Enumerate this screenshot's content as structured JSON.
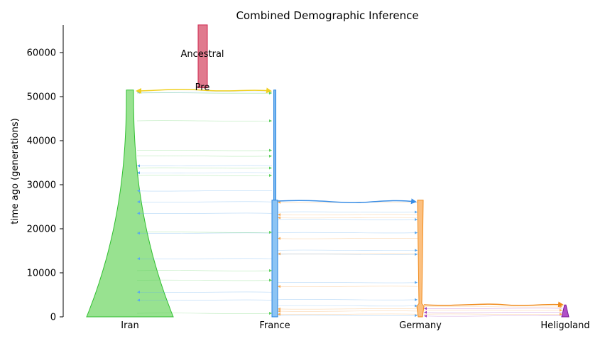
{
  "chart_data": {
    "type": "demography",
    "title": "Combined Demographic Inference",
    "ylabel": "time ago (generations)",
    "ylim": [
      0,
      66000
    ],
    "yticks": [
      0,
      10000,
      20000,
      30000,
      40000,
      50000,
      60000
    ],
    "x_categories": [
      "Iran",
      "France",
      "Germany",
      "Heligoland"
    ],
    "colors": {
      "Ancestral": "#e07a8e",
      "Pre": "#f0d020",
      "Iran": "#7fdc7f",
      "France": "#63a8ee",
      "Germany": "#f7a24a",
      "Heligoland": "#9a33b8"
    },
    "demes": [
      {
        "name": "Ancestral",
        "label": "Ancestral",
        "start_time": "inf",
        "end_time": 52000,
        "ancestor": null
      },
      {
        "name": "Pre",
        "label": "Pre",
        "start_time": 52000,
        "end_time": 51500,
        "ancestor": "Ancestral"
      },
      {
        "name": "Iran",
        "start_time": 51500,
        "end_time": 0,
        "ancestor": "Pre",
        "growth": "exponential",
        "start_size": "small",
        "end_size": "large"
      },
      {
        "name": "France",
        "start_time": 51500,
        "end_time": 0,
        "ancestor": "Pre",
        "size_increase_at": 26500
      },
      {
        "name": "Germany",
        "start_time": 26500,
        "end_time": 0,
        "ancestor": "France",
        "bottleneck_at": 2700
      },
      {
        "name": "Heligoland",
        "start_time": 2700,
        "end_time": 0,
        "ancestor": "Germany"
      }
    ],
    "splits": [
      {
        "time": 51500,
        "from": "Pre",
        "to": [
          "Iran",
          "France"
        ]
      },
      {
        "time": 26500,
        "from": "France",
        "to": "Germany"
      },
      {
        "time": 2700,
        "from": "Germany",
        "to": "Heligoland"
      }
    ],
    "migration_pulses": [
      {
        "time": 51000,
        "from": "France",
        "to": "Iran"
      },
      {
        "time": 50800,
        "from": "Iran",
        "to": "France"
      },
      {
        "time": 44500,
        "from": "Iran",
        "to": "France"
      },
      {
        "time": 37800,
        "from": "Iran",
        "to": "France"
      },
      {
        "time": 36500,
        "from": "Iran",
        "to": "France"
      },
      {
        "time": 34300,
        "from": "France",
        "to": "Iran"
      },
      {
        "time": 33800,
        "from": "Iran",
        "to": "France"
      },
      {
        "time": 32700,
        "from": "France",
        "to": "Iran"
      },
      {
        "time": 32100,
        "from": "Iran",
        "to": "France"
      },
      {
        "time": 28600,
        "from": "France",
        "to": "Iran"
      },
      {
        "time": 26100,
        "from": "France",
        "to": "Iran"
      },
      {
        "time": 23500,
        "from": "France",
        "to": "Iran"
      },
      {
        "time": 19000,
        "from": "France",
        "to": "Iran"
      },
      {
        "time": 19200,
        "from": "Iran",
        "to": "France"
      },
      {
        "time": 13200,
        "from": "France",
        "to": "Iran"
      },
      {
        "time": 10500,
        "from": "Iran",
        "to": "France"
      },
      {
        "time": 8300,
        "from": "Iran",
        "to": "France"
      },
      {
        "time": 5600,
        "from": "France",
        "to": "Iran"
      },
      {
        "time": 3800,
        "from": "France",
        "to": "Iran"
      },
      {
        "time": 800,
        "from": "Iran",
        "to": "France"
      },
      {
        "time": 26000,
        "from": "Germany",
        "to": "France"
      },
      {
        "time": 23800,
        "from": "France",
        "to": "Germany"
      },
      {
        "time": 23200,
        "from": "Germany",
        "to": "France"
      },
      {
        "time": 22500,
        "from": "Germany",
        "to": "France"
      },
      {
        "time": 22100,
        "from": "France",
        "to": "Germany"
      },
      {
        "time": 19100,
        "from": "France",
        "to": "Germany"
      },
      {
        "time": 17800,
        "from": "Germany",
        "to": "France"
      },
      {
        "time": 15100,
        "from": "France",
        "to": "Germany"
      },
      {
        "time": 14300,
        "from": "Germany",
        "to": "France"
      },
      {
        "time": 14200,
        "from": "France",
        "to": "Germany"
      },
      {
        "time": 7800,
        "from": "France",
        "to": "Germany"
      },
      {
        "time": 6900,
        "from": "Germany",
        "to": "France"
      },
      {
        "time": 3900,
        "from": "France",
        "to": "Germany"
      },
      {
        "time": 2500,
        "from": "France",
        "to": "Germany"
      },
      {
        "time": 1800,
        "from": "Germany",
        "to": "France"
      },
      {
        "time": 1300,
        "from": "Germany",
        "to": "France"
      },
      {
        "time": 600,
        "from": "Germany",
        "to": "France"
      },
      {
        "time": 300,
        "from": "France",
        "to": "Germany"
      },
      {
        "time": 2300,
        "from": "Germany",
        "to": "Heligoland"
      },
      {
        "time": 1900,
        "from": "Heligoland",
        "to": "Germany"
      },
      {
        "time": 1500,
        "from": "Germany",
        "to": "Heligoland"
      },
      {
        "time": 1000,
        "from": "Heligoland",
        "to": "Germany"
      },
      {
        "time": 600,
        "from": "Germany",
        "to": "Heligoland"
      },
      {
        "time": 200,
        "from": "Heligoland",
        "to": "Germany"
      }
    ],
    "grid": false,
    "legend": "none"
  }
}
